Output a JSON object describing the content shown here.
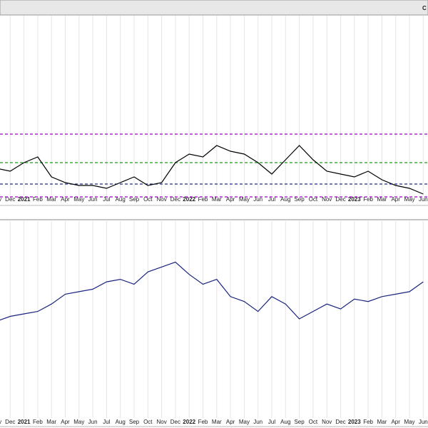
{
  "chart_data": [
    {
      "type": "line",
      "title": "C",
      "categories": [
        "Nov",
        "Dec",
        "2021",
        "Feb",
        "Mar",
        "Apr",
        "May",
        "Jun",
        "Jul",
        "Aug",
        "Sep",
        "Oct",
        "Nov",
        "Dec",
        "2022",
        "Feb",
        "Mar",
        "Apr",
        "May",
        "Jun",
        "Jul",
        "Aug",
        "Sep",
        "Oct",
        "Nov",
        "Dec",
        "2023",
        "Feb",
        "Mar",
        "Apr",
        "May",
        "Jun"
      ],
      "values": [
        23,
        22,
        25,
        27,
        20,
        18,
        17,
        17,
        16,
        18,
        20,
        17,
        18,
        25,
        28,
        27,
        31,
        29,
        28,
        25,
        21,
        26,
        31,
        26,
        22,
        21,
        20,
        22,
        19,
        17,
        16,
        14
      ],
      "color": "#000000",
      "ylim": [
        11,
        76
      ],
      "hlines": [
        {
          "value": 35,
          "color": "#9b00c8"
        },
        {
          "value": 25,
          "color": "#1a9a1a"
        },
        {
          "value": 17.5,
          "color": "#1a2a8a"
        },
        {
          "value": 13,
          "color": "#9b00c8"
        }
      ],
      "grid": true
    },
    {
      "type": "line",
      "categories": [
        "Nov",
        "Dec",
        "2021",
        "Feb",
        "Mar",
        "Apr",
        "May",
        "Jun",
        "Jul",
        "Aug",
        "Sep",
        "Oct",
        "Nov",
        "Dec",
        "2022",
        "Feb",
        "Mar",
        "Apr",
        "May",
        "Jun",
        "Jul",
        "Aug",
        "Sep",
        "Oct",
        "Nov",
        "Dec",
        "2023",
        "Feb",
        "Mar",
        "Apr",
        "May",
        "Jun"
      ],
      "values": [
        3600,
        3700,
        3750,
        3800,
        3950,
        4150,
        4200,
        4250,
        4400,
        4450,
        4350,
        4600,
        4700,
        4800,
        4550,
        4350,
        4450,
        4100,
        4000,
        3800,
        4100,
        3950,
        3650,
        3800,
        3950,
        3850,
        4050,
        4000,
        4100,
        4150,
        4200,
        4400
      ],
      "color": "#1a237e",
      "ylim": [
        1800,
        5600
      ],
      "grid": true
    }
  ]
}
